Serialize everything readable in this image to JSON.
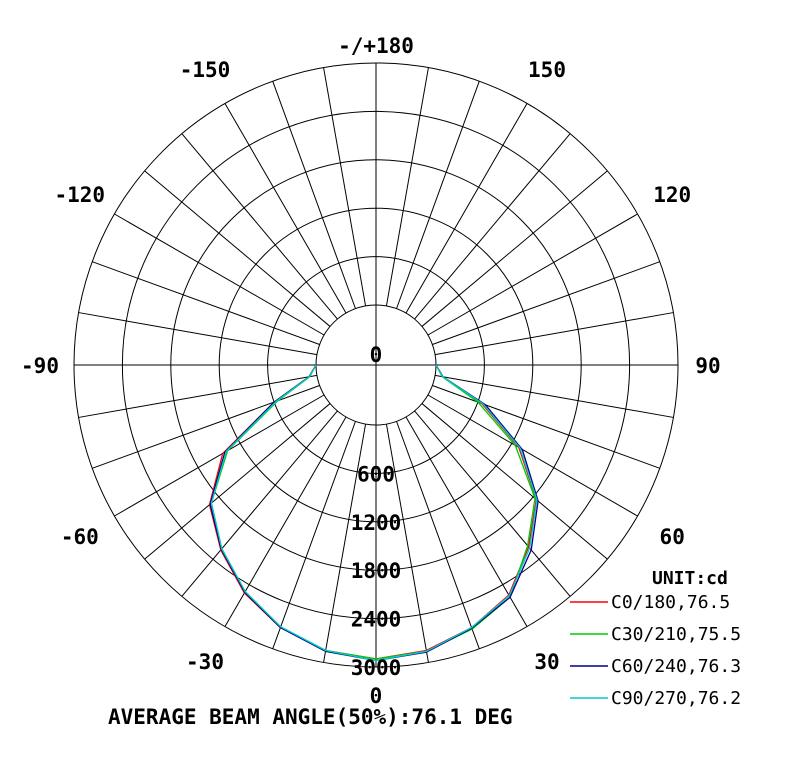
{
  "chart_data": {
    "type": "polar",
    "unit_label": "UNIT:cd",
    "footer": "AVERAGE BEAM ANGLE(50%):76.1 DEG",
    "angle_labels": [
      {
        "angle": 180,
        "text": "-/+180"
      },
      {
        "angle": 150,
        "text": "150"
      },
      {
        "angle": -150,
        "text": "-150"
      },
      {
        "angle": 120,
        "text": "120"
      },
      {
        "angle": -120,
        "text": "-120"
      },
      {
        "angle": 90,
        "text": "90"
      },
      {
        "angle": -90,
        "text": "-90"
      },
      {
        "angle": 60,
        "text": "60"
      },
      {
        "angle": -60,
        "text": "-60"
      },
      {
        "angle": 30,
        "text": "30"
      },
      {
        "angle": -30,
        "text": "-30"
      },
      {
        "angle": 0,
        "text": "0"
      }
    ],
    "radial_ticks": [
      0,
      600,
      1200,
      1800,
      2400,
      3000
    ],
    "radial_max": 3000,
    "spoke_step_deg": 10,
    "angles": [
      -90,
      -80,
      -70,
      -60,
      -50,
      -40,
      -30,
      -20,
      -10,
      0,
      10,
      20,
      30,
      40,
      50,
      60,
      70,
      80,
      90
    ],
    "series": [
      {
        "name": "C0/180,76.5",
        "color": "#ff0000",
        "values": [
          0,
          100,
          600,
          1450,
          1950,
          2250,
          2520,
          2720,
          2850,
          2900,
          2850,
          2720,
          2550,
          2200,
          1850,
          1300,
          650,
          100,
          0
        ]
      },
      {
        "name": "C30/210,75.5",
        "color": "#00cc00",
        "values": [
          0,
          90,
          550,
          1380,
          1920,
          2230,
          2500,
          2710,
          2850,
          2900,
          2860,
          2740,
          2580,
          2180,
          1830,
          1250,
          600,
          90,
          0
        ]
      },
      {
        "name": "C60/240,76.3",
        "color": "#00008b",
        "values": [
          0,
          100,
          600,
          1420,
          1940,
          2240,
          2510,
          2720,
          2860,
          2920,
          2870,
          2730,
          2580,
          2250,
          1880,
          1350,
          700,
          100,
          0
        ]
      },
      {
        "name": "C90/270,76.2",
        "color": "#00cccc",
        "values": [
          0,
          95,
          570,
          1400,
          1920,
          2230,
          2500,
          2710,
          2850,
          2920,
          2860,
          2720,
          2560,
          2220,
          1860,
          1320,
          670,
          95,
          0
        ]
      }
    ]
  }
}
